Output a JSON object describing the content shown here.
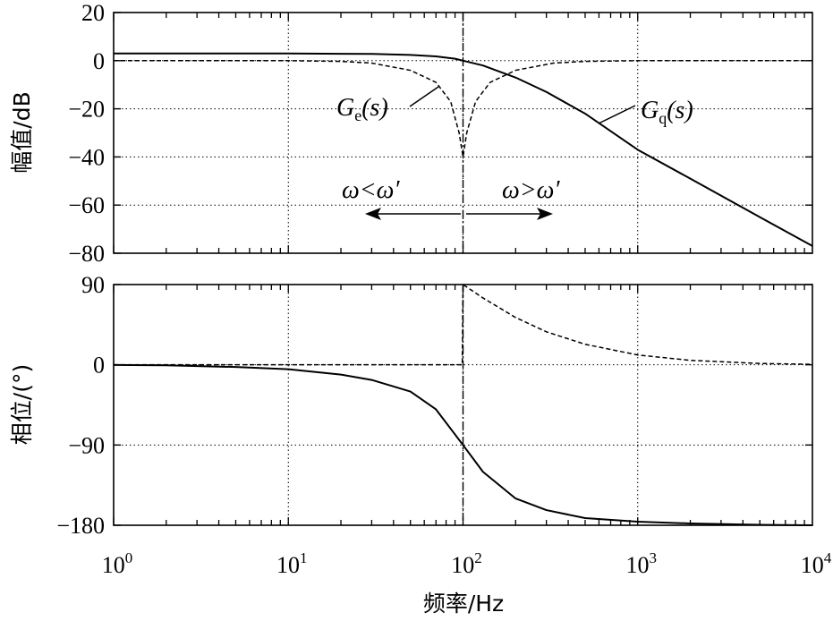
{
  "chart_data": [
    {
      "type": "line",
      "panel": "magnitude",
      "ylabel": "幅值/dB",
      "xscale": "log",
      "xlim": [
        1,
        10000
      ],
      "ylim": [
        -80,
        20
      ],
      "yticks": [
        "20",
        "0",
        "−20",
        "−40",
        "−60",
        "−80"
      ],
      "grid": true,
      "series": [
        {
          "name": "Gq(s)",
          "style": "solid",
          "points": [
            [
              1,
              3.0
            ],
            [
              10,
              3.0
            ],
            [
              30,
              2.8
            ],
            [
              50,
              2.4
            ],
            [
              70,
              1.8
            ],
            [
              90,
              0.8
            ],
            [
              100,
              0.0
            ],
            [
              130,
              -2.0
            ],
            [
              200,
              -7.0
            ],
            [
              300,
              -13.0
            ],
            [
              500,
              -22.0
            ],
            [
              1000,
              -37.0
            ],
            [
              2000,
              -49.0
            ],
            [
              5000,
              -65.0
            ],
            [
              10000,
              -77.0
            ]
          ]
        },
        {
          "name": "Ge(s)",
          "style": "dashed",
          "points": [
            [
              1,
              0.0
            ],
            [
              10,
              0.0
            ],
            [
              20,
              -0.3
            ],
            [
              30,
              -1.0
            ],
            [
              50,
              -4.0
            ],
            [
              70,
              -9.0
            ],
            [
              85,
              -17.0
            ],
            [
              95,
              -30.0
            ],
            [
              100,
              -40.0
            ],
            [
              105,
              -30.0
            ],
            [
              118,
              -17.0
            ],
            [
              143,
              -9.0
            ],
            [
              200,
              -4.0
            ],
            [
              330,
              -1.0
            ],
            [
              500,
              -0.3
            ],
            [
              1000,
              0.0
            ],
            [
              10000,
              0.0
            ]
          ]
        }
      ],
      "annotations": {
        "ge_label": "G",
        "ge_sub": "e",
        "ge_arg": "(s)",
        "gq_label": "G",
        "gq_sub": "q",
        "gq_arg": "(s)",
        "left_region": "ω<ω′",
        "right_region": "ω>ω′"
      }
    },
    {
      "type": "line",
      "panel": "phase",
      "ylabel": "相位/(°)",
      "xlabel": "频率/Hz",
      "xscale": "log",
      "xlim": [
        1,
        10000
      ],
      "ylim": [
        -180,
        90
      ],
      "yticks": [
        "90",
        "0",
        "−90",
        "−180"
      ],
      "xticks": [
        {
          "base": "10",
          "exp": "0"
        },
        {
          "base": "10",
          "exp": "1"
        },
        {
          "base": "10",
          "exp": "2"
        },
        {
          "base": "10",
          "exp": "3"
        },
        {
          "base": "10",
          "exp": "4"
        }
      ],
      "grid": true,
      "series": [
        {
          "name": "Gq(s)",
          "style": "solid",
          "points": [
            [
              1,
              -0.2
            ],
            [
              2,
              -0.6
            ],
            [
              5,
              -2.5
            ],
            [
              10,
              -5.0
            ],
            [
              20,
              -11.0
            ],
            [
              30,
              -17.0
            ],
            [
              50,
              -30.0
            ],
            [
              70,
              -50.0
            ],
            [
              100,
              -90.0
            ],
            [
              130,
              -120.0
            ],
            [
              200,
              -150.0
            ],
            [
              300,
              -163.0
            ],
            [
              500,
              -172.0
            ],
            [
              1000,
              -176.0
            ],
            [
              2000,
              -178.0
            ],
            [
              5000,
              -179.5
            ],
            [
              10000,
              -180.0
            ]
          ]
        },
        {
          "name": "Ge(s)",
          "style": "dashed",
          "points": [
            [
              1,
              0.0
            ],
            [
              10,
              0.0
            ],
            [
              99,
              0.0
            ],
            [
              100,
              90.0
            ],
            [
              130,
              75.0
            ],
            [
              200,
              53.0
            ],
            [
              300,
              37.0
            ],
            [
              500,
              23.0
            ],
            [
              1000,
              11.0
            ],
            [
              2000,
              5.0
            ],
            [
              5000,
              1.5
            ],
            [
              10000,
              0.5
            ]
          ]
        }
      ]
    }
  ]
}
